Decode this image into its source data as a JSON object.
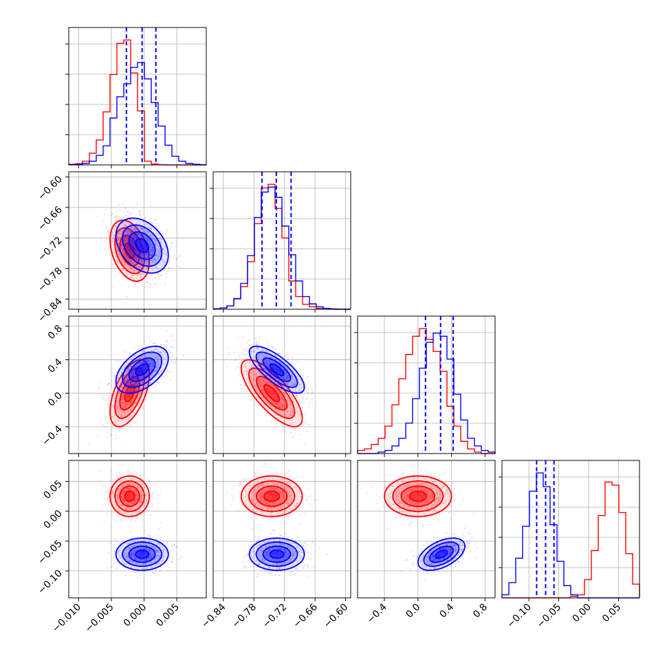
{
  "colors": {
    "red": "#ff0000",
    "blue": "#0000ff",
    "grid": "#b0b0b0",
    "axis": "#000000"
  },
  "chart_data": {
    "type": "corner",
    "grid": true,
    "parameters": [
      {
        "range": [
          -0.0115,
          0.0095
        ],
        "ticks": [
          -0.01,
          -0.005,
          0.0,
          0.005
        ],
        "tick_labels": [
          "−0.010",
          "−0.005",
          "0.000",
          "0.005"
        ]
      },
      {
        "range": [
          -0.86,
          -0.59
        ],
        "ticks": [
          -0.84,
          -0.78,
          -0.72,
          -0.66,
          -0.6
        ],
        "tick_labels": [
          "−0.84",
          "−0.78",
          "−0.72",
          "−0.66",
          "−0.60"
        ]
      },
      {
        "range": [
          -0.72,
          0.92
        ],
        "ticks": [
          -0.4,
          0.0,
          0.4,
          0.8
        ],
        "tick_labels": [
          "−0.4",
          "0.0",
          "0.4",
          "0.8"
        ]
      },
      {
        "range": [
          -0.145,
          0.085
        ],
        "ticks": [
          -0.1,
          -0.05,
          0.0,
          0.05
        ],
        "tick_labels": [
          "−0.10",
          "−0.05",
          "0.00",
          "0.05"
        ]
      }
    ],
    "series": [
      {
        "color": "#ff0000",
        "hist": [
          [
            0.2,
            0.4,
            1.2,
            3.8,
            8.1,
            17.2,
            29.3,
            39.4,
            40.5,
            29.8,
            17.5,
            1.2,
            0.3,
            0.1,
            0.0,
            0.0,
            0.0,
            0.0,
            0.0,
            0.0
          ],
          [
            0.1,
            0.3,
            0.8,
            2.5,
            5.5,
            11.6,
            20.9,
            29.6,
            30.5,
            24.6,
            17.4,
            6.9,
            3.1,
            1.2,
            0.6,
            0.2,
            0.1,
            0.0,
            0.0,
            0.0
          ],
          [
            0.2,
            0.3,
            0.6,
            1.0,
            1.8,
            3.2,
            4.9,
            6.5,
            7.7,
            8.2,
            7.5,
            6.7,
            5.4,
            3.1,
            1.8,
            0.8,
            0.3,
            0.1,
            0.0,
            0.0
          ],
          [
            0.0,
            0.0,
            0.0,
            0.0,
            0.0,
            0.0,
            0.0,
            0.0,
            0.0,
            0.0,
            0.1,
            0.2,
            1.2,
            3.1,
            5.4,
            7.6,
            7.4,
            5.6,
            2.9,
            0.9
          ]
        ],
        "mean": [
          -0.0022,
          -0.745,
          0.0,
          0.025
        ],
        "sd": [
          0.0015,
          0.03,
          0.2,
          0.017
        ],
        "corr": [
          [
            1,
            -0.35,
            0.55,
            0.0
          ],
          [
            -0.35,
            1,
            -0.75,
            0.0
          ],
          [
            0.55,
            -0.75,
            1,
            0.0
          ],
          [
            0.0,
            0.0,
            0.0,
            1
          ]
        ]
      },
      {
        "color": "#0000ff",
        "hist": [
          [
            0.1,
            0.2,
            0.5,
            1.2,
            3.1,
            6.2,
            15.2,
            22.1,
            26.3,
            31.6,
            33.2,
            27.9,
            20.2,
            12.6,
            6.4,
            2.8,
            1.2,
            0.5,
            0.2,
            0.1
          ],
          [
            0.1,
            0.3,
            0.8,
            2.6,
            6.3,
            13.1,
            22.4,
            28.6,
            29.8,
            27.3,
            20.3,
            13.3,
            6.9,
            3.1,
            1.3,
            0.6,
            0.2,
            0.1,
            0.0,
            0.0
          ],
          [
            0.0,
            0.0,
            0.0,
            0.1,
            0.2,
            0.5,
            1.0,
            2.0,
            3.6,
            5.6,
            7.3,
            7.9,
            7.7,
            6.2,
            3.9,
            2.2,
            1.0,
            0.5,
            0.2,
            0.1
          ],
          [
            0.2,
            1.0,
            2.6,
            4.7,
            7.0,
            8.2,
            7.3,
            4.8,
            2.4,
            0.8,
            0.2,
            0.0,
            0.0,
            0.0,
            0.0,
            0.0,
            0.0,
            0.0,
            0.0,
            0.0
          ]
        ],
        "mean": [
          -0.0003,
          -0.735,
          0.28,
          -0.072
        ],
        "sd": [
          0.002,
          0.027,
          0.14,
          0.0135
        ],
        "corr": [
          [
            1,
            -0.35,
            0.5,
            0.0
          ],
          [
            -0.35,
            1,
            -0.75,
            0.0
          ],
          [
            0.5,
            -0.75,
            1,
            0.5
          ],
          [
            0.0,
            0.0,
            0.5,
            1
          ]
        ]
      }
    ],
    "quantiles_color": "#0000ff",
    "quantiles": [
      [
        -0.0027,
        -0.0003,
        0.0018
      ],
      [
        -0.764,
        -0.736,
        -0.707
      ],
      [
        0.09,
        0.27,
        0.42
      ],
      [
        -0.087,
        -0.072,
        -0.058
      ]
    ],
    "contour_levels_sigma": [
      0.5,
      1.0,
      1.5,
      2.0
    ]
  }
}
